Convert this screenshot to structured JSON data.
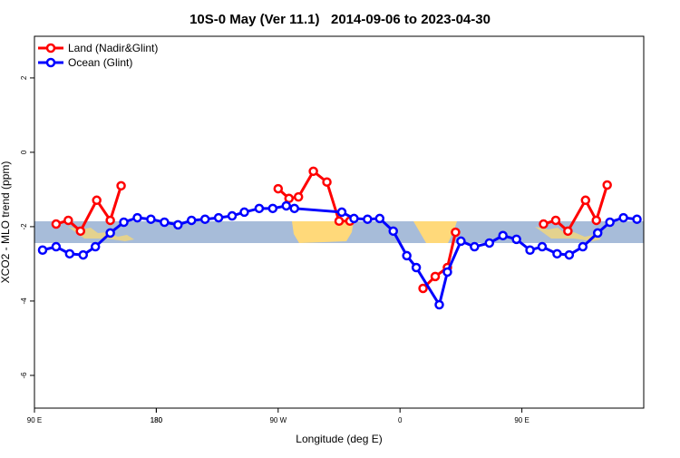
{
  "chart_data": {
    "type": "line",
    "title": "10S-0 May (Ver 11.1)   2014-09-06 to 2023-04-30",
    "x_label": "Longitude (deg E)",
    "y_label": "XCO2 - MLO trend (ppm)",
    "xlim": [
      90,
      540
    ],
    "xticks": [
      {
        "value": 90,
        "label": "90 E"
      },
      180,
      {
        "value": 270,
        "label": "90 W"
      },
      {
        "value": 360,
        "label": "0"
      },
      {
        "value": 450,
        "label": "90 E"
      },
      180.0001
    ],
    "ylim": [
      -6.88,
      3.12
    ],
    "yticks": [
      -6,
      -4,
      -2,
      0,
      2
    ],
    "legend": "top-left",
    "series": [
      {
        "name": "Land (Nadir&Glint)",
        "color": "#ff0000",
        "x": [
          106,
          115,
          124,
          136,
          146,
          154,
          null,
          270,
          278,
          285,
          296,
          306,
          315,
          323,
          null,
          377,
          386,
          395,
          401,
          null,
          466,
          475,
          484,
          497,
          505,
          513
        ],
        "values": [
          -1.93,
          -1.83,
          -2.12,
          -1.29,
          -1.83,
          -0.9,
          null,
          -0.98,
          -1.24,
          -1.2,
          -0.51,
          -0.8,
          -1.85,
          -1.85,
          null,
          -3.66,
          -3.34,
          -3.1,
          -2.15,
          null,
          -1.93,
          -1.83,
          -2.12,
          -1.29,
          -1.83,
          -0.88
        ]
      },
      {
        "name": "Ocean (Glint)",
        "color": "#0000ff",
        "x": [
          96,
          106,
          116,
          126,
          135,
          146,
          156,
          166,
          176,
          186,
          196,
          206,
          216,
          226,
          236,
          245,
          256,
          266,
          276,
          282,
          317,
          326,
          336,
          345,
          355,
          365,
          372,
          389,
          395,
          405,
          415,
          426,
          436,
          446,
          456,
          465,
          476,
          485,
          495,
          506,
          515,
          525,
          535
        ],
        "values": [
          -2.63,
          -2.54,
          -2.73,
          -2.76,
          -2.54,
          -2.17,
          -1.88,
          -1.76,
          -1.8,
          -1.88,
          -1.95,
          -1.83,
          -1.8,
          -1.76,
          -1.71,
          -1.61,
          -1.51,
          -1.51,
          -1.44,
          -1.51,
          -1.61,
          -1.78,
          -1.8,
          -1.78,
          -2.12,
          -2.78,
          -3.1,
          -4.1,
          -3.22,
          -2.39,
          -2.54,
          -2.44,
          -2.24,
          -2.34,
          -2.63,
          -2.54,
          -2.73,
          -2.76,
          -2.54,
          -2.17,
          -1.88,
          -1.76,
          -1.8
        ]
      }
    ]
  }
}
